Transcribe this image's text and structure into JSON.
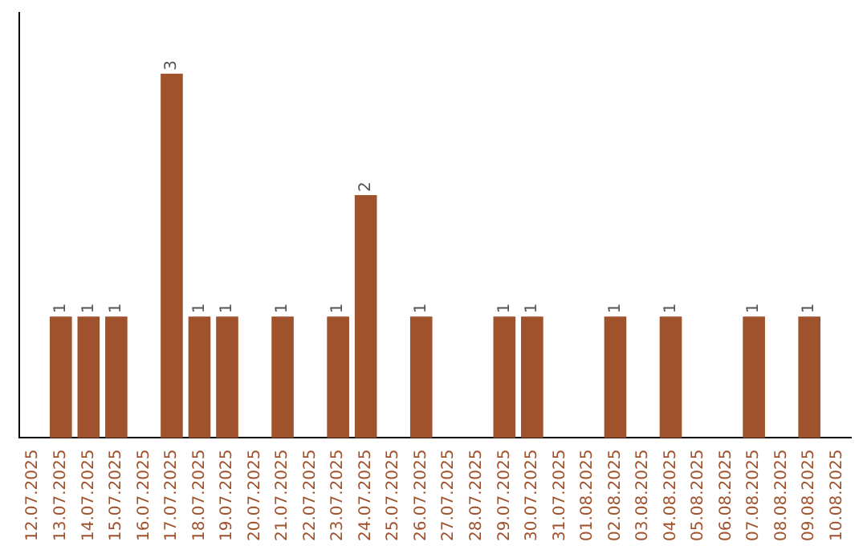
{
  "chart_data": {
    "type": "bar",
    "categories": [
      "12.07.2025",
      "13.07.2025",
      "14.07.2025",
      "15.07.2025",
      "16.07.2025",
      "17.07.2025",
      "18.07.2025",
      "19.07.2025",
      "20.07.2025",
      "21.07.2025",
      "22.07.2025",
      "23.07.2025",
      "24.07.2025",
      "25.07.2025",
      "26.07.2025",
      "27.07.2025",
      "28.07.2025",
      "29.07.2025",
      "30.07.2025",
      "31.07.2025",
      "01.08.2025",
      "02.08.2025",
      "03.08.2025",
      "04.08.2025",
      "05.08.2025",
      "06.08.2025",
      "07.08.2025",
      "08.08.2025",
      "09.08.2025",
      "10.08.2025"
    ],
    "values": [
      0,
      1,
      1,
      1,
      0,
      3,
      1,
      1,
      0,
      1,
      0,
      1,
      2,
      0,
      1,
      0,
      0,
      1,
      1,
      0,
      0,
      1,
      0,
      1,
      0,
      0,
      1,
      0,
      1,
      0
    ],
    "value_labels": [
      null,
      "1",
      "1",
      "1",
      null,
      "3",
      "1",
      "1",
      null,
      "1",
      null,
      "1",
      "2",
      null,
      "1",
      null,
      null,
      "1",
      "1",
      null,
      null,
      "1",
      null,
      "1",
      null,
      null,
      "1",
      null,
      "1",
      null
    ],
    "color": "#a0522d",
    "grid": false,
    "legend": false,
    "tick_labels": "x"
  }
}
